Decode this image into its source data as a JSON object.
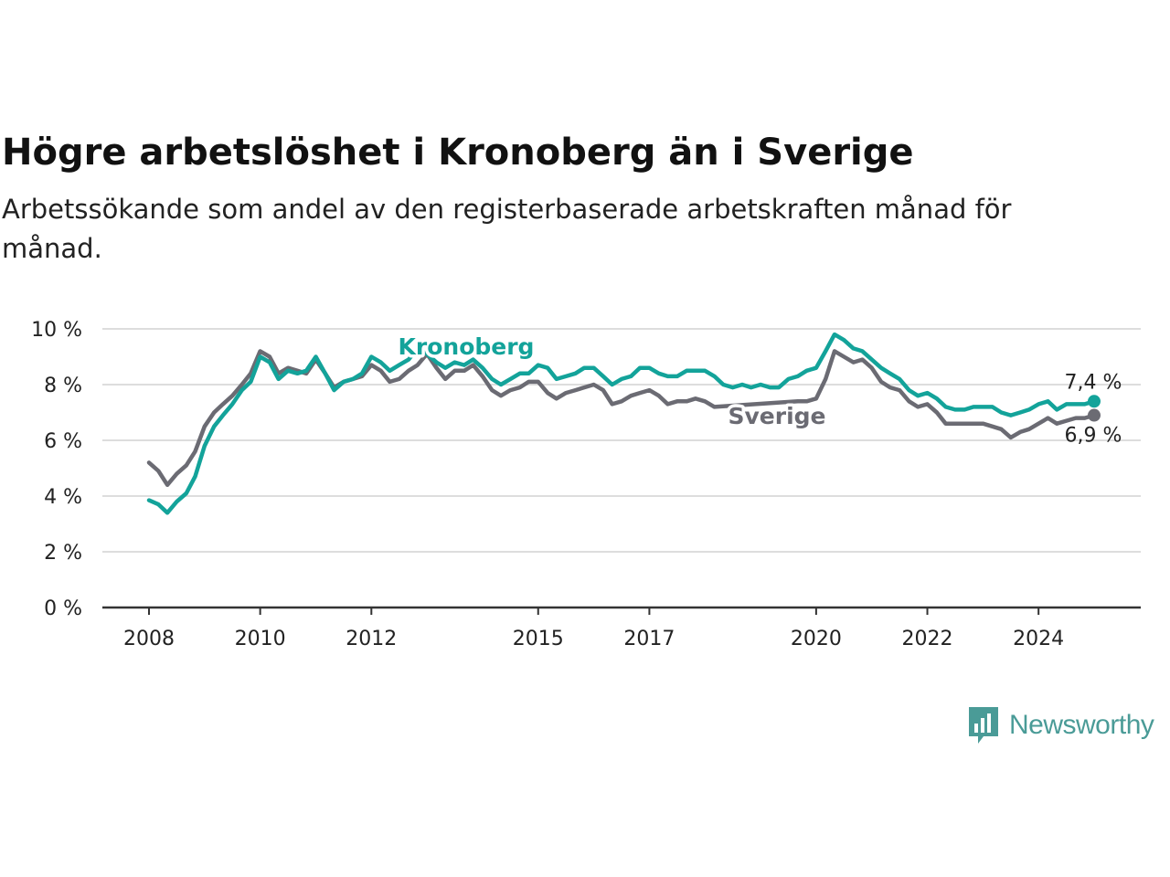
{
  "title": "Högre arbetslöshet i Kronoberg än i Sverige",
  "subtitle": "Arbetssökande som andel av den registerbaserade arbetskraften månad för månad.",
  "logo": {
    "text": "Newsworthy",
    "icon": "newsworthy-chart-icon"
  },
  "colors": {
    "kronoberg": "#13a39a",
    "sverige": "#6b6b73",
    "grid": "#dddddd",
    "axis": "#333333"
  },
  "chart_data": {
    "type": "line",
    "title": "Högre arbetslöshet i Kronoberg än i Sverige",
    "subtitle": "Arbetssökande som andel av den registerbaserade arbetskraften månad för månad.",
    "xlabel": "",
    "ylabel": "",
    "ylim": [
      0,
      10
    ],
    "xlim": [
      2007.8,
      2025.8
    ],
    "y_ticks": [
      0,
      2,
      4,
      6,
      8,
      10
    ],
    "y_tick_labels": [
      "0 %",
      "2 %",
      "4 %",
      "6 %",
      "8 %",
      "10 %"
    ],
    "x_ticks": [
      2008,
      2010,
      2012,
      2015,
      2017,
      2020,
      2022,
      2024
    ],
    "x_tick_labels": [
      "2008",
      "2010",
      "2012",
      "2015",
      "2017",
      "2020",
      "2022",
      "2024"
    ],
    "grid": true,
    "legend": "inline labels",
    "series": [
      {
        "name": "Kronoberg",
        "color": "#13a39a",
        "end_label": "7,4 %",
        "points": [
          [
            2008.0,
            3.85
          ],
          [
            2008.17,
            3.7
          ],
          [
            2008.33,
            3.4
          ],
          [
            2008.5,
            3.8
          ],
          [
            2008.67,
            4.1
          ],
          [
            2008.83,
            4.7
          ],
          [
            2009.0,
            5.8
          ],
          [
            2009.17,
            6.5
          ],
          [
            2009.33,
            6.9
          ],
          [
            2009.5,
            7.3
          ],
          [
            2009.67,
            7.8
          ],
          [
            2009.83,
            8.1
          ],
          [
            2010.0,
            9.0
          ],
          [
            2010.17,
            8.8
          ],
          [
            2010.33,
            8.2
          ],
          [
            2010.5,
            8.5
          ],
          [
            2010.67,
            8.4
          ],
          [
            2010.83,
            8.5
          ],
          [
            2011.0,
            9.0
          ],
          [
            2011.17,
            8.4
          ],
          [
            2011.33,
            7.8
          ],
          [
            2011.5,
            8.1
          ],
          [
            2011.67,
            8.2
          ],
          [
            2011.83,
            8.4
          ],
          [
            2012.0,
            9.0
          ],
          [
            2012.17,
            8.8
          ],
          [
            2012.33,
            8.5
          ],
          [
            2012.5,
            8.7
          ],
          [
            2012.67,
            8.9
          ],
          [
            2012.83,
            9.3
          ],
          [
            2013.0,
            9.1
          ],
          [
            2013.17,
            8.8
          ],
          [
            2013.33,
            8.6
          ],
          [
            2013.5,
            8.8
          ],
          [
            2013.67,
            8.7
          ],
          [
            2013.83,
            8.9
          ],
          [
            2014.0,
            8.6
          ],
          [
            2014.17,
            8.2
          ],
          [
            2014.33,
            8.0
          ],
          [
            2014.5,
            8.2
          ],
          [
            2014.67,
            8.4
          ],
          [
            2014.83,
            8.4
          ],
          [
            2015.0,
            8.7
          ],
          [
            2015.17,
            8.6
          ],
          [
            2015.33,
            8.2
          ],
          [
            2015.5,
            8.3
          ],
          [
            2015.67,
            8.4
          ],
          [
            2015.83,
            8.6
          ],
          [
            2016.0,
            8.6
          ],
          [
            2016.17,
            8.3
          ],
          [
            2016.33,
            8.0
          ],
          [
            2016.5,
            8.2
          ],
          [
            2016.67,
            8.3
          ],
          [
            2016.83,
            8.6
          ],
          [
            2017.0,
            8.6
          ],
          [
            2017.17,
            8.4
          ],
          [
            2017.33,
            8.3
          ],
          [
            2017.5,
            8.3
          ],
          [
            2017.67,
            8.5
          ],
          [
            2017.83,
            8.5
          ],
          [
            2018.0,
            8.5
          ],
          [
            2018.17,
            8.3
          ],
          [
            2018.33,
            8.0
          ],
          [
            2018.5,
            7.9
          ],
          [
            2018.67,
            8.0
          ],
          [
            2018.83,
            7.9
          ],
          [
            2019.0,
            8.0
          ],
          [
            2019.17,
            7.9
          ],
          [
            2019.33,
            7.9
          ],
          [
            2019.5,
            8.2
          ],
          [
            2019.67,
            8.3
          ],
          [
            2019.83,
            8.5
          ],
          [
            2020.0,
            8.6
          ],
          [
            2020.17,
            9.2
          ],
          [
            2020.33,
            9.8
          ],
          [
            2020.5,
            9.6
          ],
          [
            2020.67,
            9.3
          ],
          [
            2020.83,
            9.2
          ],
          [
            2021.0,
            8.9
          ],
          [
            2021.17,
            8.6
          ],
          [
            2021.33,
            8.4
          ],
          [
            2021.5,
            8.2
          ],
          [
            2021.67,
            7.8
          ],
          [
            2021.83,
            7.6
          ],
          [
            2022.0,
            7.7
          ],
          [
            2022.17,
            7.5
          ],
          [
            2022.33,
            7.2
          ],
          [
            2022.5,
            7.1
          ],
          [
            2022.67,
            7.1
          ],
          [
            2022.83,
            7.2
          ],
          [
            2023.0,
            7.2
          ],
          [
            2023.17,
            7.2
          ],
          [
            2023.33,
            7.0
          ],
          [
            2023.5,
            6.9
          ],
          [
            2023.67,
            7.0
          ],
          [
            2023.83,
            7.1
          ],
          [
            2024.0,
            7.3
          ],
          [
            2024.17,
            7.4
          ],
          [
            2024.33,
            7.1
          ],
          [
            2024.5,
            7.3
          ],
          [
            2024.67,
            7.3
          ],
          [
            2024.83,
            7.3
          ],
          [
            2025.0,
            7.4
          ]
        ]
      },
      {
        "name": "Sverige",
        "color": "#6b6b73",
        "end_label": "6,9 %",
        "points": [
          [
            2008.0,
            5.2
          ],
          [
            2008.17,
            4.9
          ],
          [
            2008.33,
            4.4
          ],
          [
            2008.5,
            4.8
          ],
          [
            2008.67,
            5.1
          ],
          [
            2008.83,
            5.6
          ],
          [
            2009.0,
            6.5
          ],
          [
            2009.17,
            7.0
          ],
          [
            2009.33,
            7.3
          ],
          [
            2009.5,
            7.6
          ],
          [
            2009.67,
            8.0
          ],
          [
            2009.83,
            8.4
          ],
          [
            2010.0,
            9.2
          ],
          [
            2010.17,
            9.0
          ],
          [
            2010.33,
            8.4
          ],
          [
            2010.5,
            8.6
          ],
          [
            2010.67,
            8.5
          ],
          [
            2010.83,
            8.4
          ],
          [
            2011.0,
            8.9
          ],
          [
            2011.17,
            8.4
          ],
          [
            2011.33,
            7.9
          ],
          [
            2011.5,
            8.1
          ],
          [
            2011.67,
            8.2
          ],
          [
            2011.83,
            8.3
          ],
          [
            2012.0,
            8.7
          ],
          [
            2012.17,
            8.5
          ],
          [
            2012.33,
            8.1
          ],
          [
            2012.5,
            8.2
          ],
          [
            2012.67,
            8.5
          ],
          [
            2012.83,
            8.7
          ],
          [
            2013.0,
            9.1
          ],
          [
            2013.17,
            8.6
          ],
          [
            2013.33,
            8.2
          ],
          [
            2013.5,
            8.5
          ],
          [
            2013.67,
            8.5
          ],
          [
            2013.83,
            8.7
          ],
          [
            2014.0,
            8.3
          ],
          [
            2014.17,
            7.8
          ],
          [
            2014.33,
            7.6
          ],
          [
            2014.5,
            7.8
          ],
          [
            2014.67,
            7.9
          ],
          [
            2014.83,
            8.1
          ],
          [
            2015.0,
            8.1
          ],
          [
            2015.17,
            7.7
          ],
          [
            2015.33,
            7.5
          ],
          [
            2015.5,
            7.7
          ],
          [
            2015.67,
            7.8
          ],
          [
            2015.83,
            7.9
          ],
          [
            2016.0,
            8.0
          ],
          [
            2016.17,
            7.8
          ],
          [
            2016.33,
            7.3
          ],
          [
            2016.5,
            7.4
          ],
          [
            2016.67,
            7.6
          ],
          [
            2016.83,
            7.7
          ],
          [
            2017.0,
            7.8
          ],
          [
            2017.17,
            7.6
          ],
          [
            2017.33,
            7.3
          ],
          [
            2017.5,
            7.4
          ],
          [
            2017.67,
            7.4
          ],
          [
            2017.83,
            7.5
          ],
          [
            2018.0,
            7.4
          ],
          [
            2018.17,
            7.2
          ],
          [
            2019.67,
            7.4
          ],
          [
            2019.83,
            7.4
          ],
          [
            2020.0,
            7.5
          ],
          [
            2020.17,
            8.2
          ],
          [
            2020.33,
            9.2
          ],
          [
            2020.5,
            9.0
          ],
          [
            2020.67,
            8.8
          ],
          [
            2020.83,
            8.9
          ],
          [
            2021.0,
            8.6
          ],
          [
            2021.17,
            8.1
          ],
          [
            2021.33,
            7.9
          ],
          [
            2021.5,
            7.8
          ],
          [
            2021.67,
            7.4
          ],
          [
            2021.83,
            7.2
          ],
          [
            2022.0,
            7.3
          ],
          [
            2022.17,
            7.0
          ],
          [
            2022.33,
            6.6
          ],
          [
            2022.5,
            6.6
          ],
          [
            2022.67,
            6.6
          ],
          [
            2022.83,
            6.6
          ],
          [
            2023.0,
            6.6
          ],
          [
            2023.17,
            6.5
          ],
          [
            2023.33,
            6.4
          ],
          [
            2023.5,
            6.1
          ],
          [
            2023.67,
            6.3
          ],
          [
            2023.83,
            6.4
          ],
          [
            2024.0,
            6.6
          ],
          [
            2024.17,
            6.8
          ],
          [
            2024.33,
            6.6
          ],
          [
            2024.5,
            6.7
          ],
          [
            2024.67,
            6.8
          ],
          [
            2024.83,
            6.8
          ],
          [
            2025.0,
            6.9
          ]
        ]
      }
    ]
  }
}
